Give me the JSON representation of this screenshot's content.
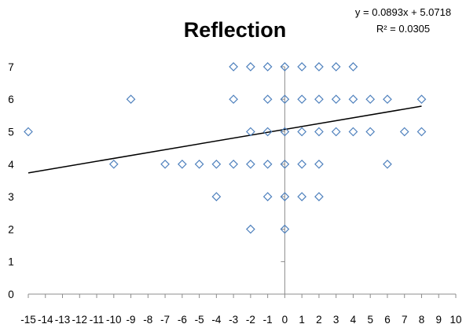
{
  "chart_data": {
    "type": "scatter",
    "title": "Reflection",
    "xlabel": "",
    "ylabel": "",
    "xlim": [
      -15,
      10
    ],
    "ylim": [
      0,
      7
    ],
    "x_ticks": [
      -15,
      -14,
      -13,
      -12,
      -11,
      -10,
      -9,
      -8,
      -7,
      -6,
      -5,
      -4,
      -3,
      -2,
      -1,
      0,
      1,
      2,
      3,
      4,
      5,
      6,
      7,
      8,
      9,
      10
    ],
    "y_ticks": [
      0,
      1,
      2,
      3,
      4,
      5,
      6,
      7
    ],
    "x_tick_labels": [
      "-15",
      "-14",
      "-13",
      "-12",
      "-11",
      "-10",
      "-9",
      "-8",
      "-7",
      "-6",
      "-5",
      "-4",
      "-3",
      "-2",
      "-1",
      "0",
      "1",
      "2",
      "3",
      "4",
      "5",
      "6",
      "7",
      "8",
      "9",
      "10"
    ],
    "y_tick_labels": [
      "0",
      "1",
      "2",
      "3",
      "4",
      "5",
      "6",
      "7"
    ],
    "grid": false,
    "marker": "diamond-open",
    "marker_color": "#4f81bd",
    "line_color": "#000000",
    "points": [
      {
        "x": -3,
        "y": 7
      },
      {
        "x": -2,
        "y": 7
      },
      {
        "x": -1,
        "y": 7
      },
      {
        "x": 0,
        "y": 7
      },
      {
        "x": 1,
        "y": 7
      },
      {
        "x": 2,
        "y": 7
      },
      {
        "x": 3,
        "y": 7
      },
      {
        "x": 4,
        "y": 7
      },
      {
        "x": -9,
        "y": 6
      },
      {
        "x": -3,
        "y": 6
      },
      {
        "x": -1,
        "y": 6
      },
      {
        "x": 0,
        "y": 6
      },
      {
        "x": 1,
        "y": 6
      },
      {
        "x": 2,
        "y": 6
      },
      {
        "x": 3,
        "y": 6
      },
      {
        "x": 4,
        "y": 6
      },
      {
        "x": 5,
        "y": 6
      },
      {
        "x": 6,
        "y": 6
      },
      {
        "x": 8,
        "y": 6
      },
      {
        "x": -15,
        "y": 5
      },
      {
        "x": -2,
        "y": 5
      },
      {
        "x": -1,
        "y": 5
      },
      {
        "x": 0,
        "y": 5
      },
      {
        "x": 1,
        "y": 5
      },
      {
        "x": 2,
        "y": 5
      },
      {
        "x": 3,
        "y": 5
      },
      {
        "x": 4,
        "y": 5
      },
      {
        "x": 5,
        "y": 5
      },
      {
        "x": 7,
        "y": 5
      },
      {
        "x": 8,
        "y": 5
      },
      {
        "x": -10,
        "y": 4
      },
      {
        "x": -7,
        "y": 4
      },
      {
        "x": -6,
        "y": 4
      },
      {
        "x": -5,
        "y": 4
      },
      {
        "x": -4,
        "y": 4
      },
      {
        "x": -3,
        "y": 4
      },
      {
        "x": -2,
        "y": 4
      },
      {
        "x": -1,
        "y": 4
      },
      {
        "x": 0,
        "y": 4
      },
      {
        "x": 1,
        "y": 4
      },
      {
        "x": 2,
        "y": 4
      },
      {
        "x": 6,
        "y": 4
      },
      {
        "x": -4,
        "y": 3
      },
      {
        "x": -1,
        "y": 3
      },
      {
        "x": 0,
        "y": 3
      },
      {
        "x": 1,
        "y": 3
      },
      {
        "x": 2,
        "y": 3
      },
      {
        "x": -2,
        "y": 2
      },
      {
        "x": 0,
        "y": 2
      }
    ],
    "trendline": {
      "slope": 0.0893,
      "intercept": 5.0718,
      "x_range": [
        -15,
        8
      ],
      "equation_label": "y = 0.0893x + 5.0718",
      "r2_label": "R² = 0.0305"
    }
  }
}
